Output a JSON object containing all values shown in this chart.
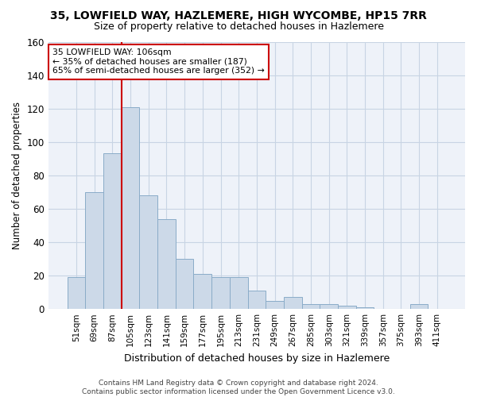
{
  "title": "35, LOWFIELD WAY, HAZLEMERE, HIGH WYCOMBE, HP15 7RR",
  "subtitle": "Size of property relative to detached houses in Hazlemere",
  "xlabel": "Distribution of detached houses by size in Hazlemere",
  "ylabel": "Number of detached properties",
  "categories": [
    "51sqm",
    "69sqm",
    "87sqm",
    "105sqm",
    "123sqm",
    "141sqm",
    "159sqm",
    "177sqm",
    "195sqm",
    "213sqm",
    "231sqm",
    "249sqm",
    "267sqm",
    "285sqm",
    "303sqm",
    "321sqm",
    "339sqm",
    "357sqm",
    "375sqm",
    "393sqm",
    "411sqm"
  ],
  "values": [
    19,
    70,
    93,
    121,
    68,
    54,
    30,
    21,
    19,
    19,
    11,
    5,
    7,
    3,
    3,
    2,
    1,
    0,
    0,
    3,
    0
  ],
  "bar_color": "#ccd9e8",
  "bar_edge_color": "#8aacc8",
  "vline_index": 3,
  "annotation_text": "35 LOWFIELD WAY: 106sqm\n← 35% of detached houses are smaller (187)\n65% of semi-detached houses are larger (352) →",
  "annotation_box_color": "#ffffff",
  "annotation_box_edge": "#cc0000",
  "vline_color": "#cc0000",
  "grid_color": "#c8d4e4",
  "background_color": "#eef2f9",
  "footer": "Contains HM Land Registry data © Crown copyright and database right 2024.\nContains public sector information licensed under the Open Government Licence v3.0.",
  "ylim": [
    0,
    160
  ],
  "yticks": [
    0,
    20,
    40,
    60,
    80,
    100,
    120,
    140,
    160
  ]
}
